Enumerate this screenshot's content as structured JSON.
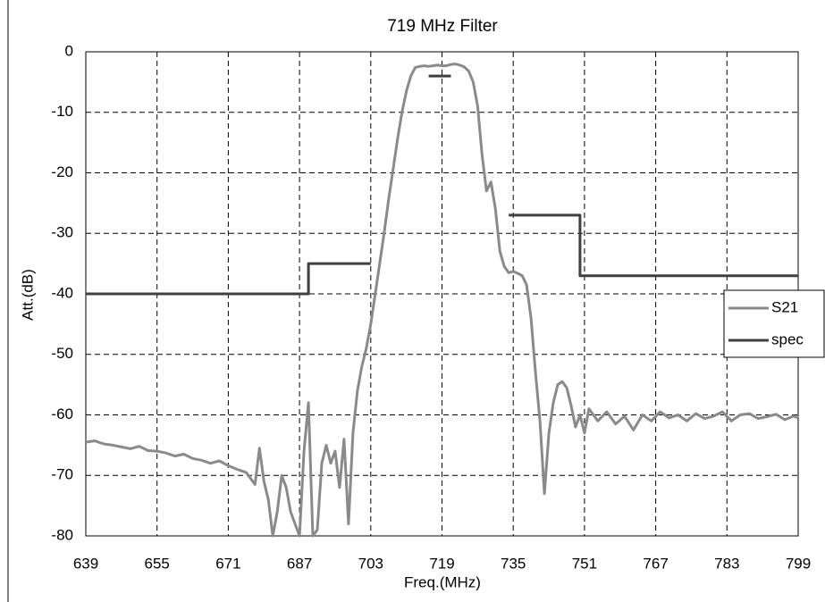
{
  "chart_data": {
    "type": "line",
    "title": "719 MHz Filter",
    "x_label": "Freq.(MHz)",
    "y_label": "Att.(dB)",
    "xlim": [
      639,
      799
    ],
    "xticks": [
      639,
      655,
      671,
      687,
      703,
      719,
      735,
      751,
      767,
      783,
      799
    ],
    "ylim": [
      -80,
      0
    ],
    "yticks": [
      0,
      -10,
      -20,
      -30,
      -40,
      -50,
      -60,
      -70,
      -80
    ],
    "grid": true,
    "legend": "right",
    "series": [
      {
        "name": "S21",
        "color": "#8a8a8a",
        "x": [
          639,
          641,
          643,
          645,
          647,
          649,
          651,
          653,
          655,
          657,
          659,
          661,
          663,
          665,
          667,
          669,
          671,
          673,
          675,
          676,
          677,
          678,
          679,
          680,
          681,
          682,
          683,
          684,
          685,
          686,
          687,
          688,
          689,
          690,
          691,
          692,
          693,
          694,
          695,
          696,
          697,
          698,
          699,
          700,
          701,
          702,
          703,
          704,
          705,
          706,
          707,
          708,
          709,
          710,
          711,
          712,
          713,
          714,
          715,
          716,
          717,
          718,
          719,
          720,
          721,
          722,
          723,
          724,
          725,
          726,
          727,
          728,
          729,
          730,
          731,
          732,
          733,
          734,
          735,
          736,
          737,
          738,
          739,
          740,
          741,
          742,
          743,
          744,
          745,
          746,
          747,
          748,
          749,
          750,
          751,
          752,
          754,
          756,
          758,
          760,
          762,
          764,
          766,
          768,
          770,
          772,
          774,
          776,
          778,
          780,
          782,
          784,
          786,
          788,
          790,
          792,
          794,
          796,
          798,
          799
        ],
        "values": [
          -64.5,
          -64.3,
          -64.8,
          -65.0,
          -65.3,
          -65.6,
          -65.2,
          -65.9,
          -66.0,
          -66.3,
          -66.8,
          -66.5,
          -67.2,
          -67.5,
          -68.0,
          -67.6,
          -68.4,
          -69.0,
          -69.5,
          -70.5,
          -71.5,
          -65.5,
          -71,
          -74,
          -80,
          -76,
          -70,
          -72,
          -76,
          -78,
          -80,
          -66,
          -58,
          -80,
          -79,
          -68,
          -65,
          -68,
          -66,
          -72,
          -64,
          -78,
          -63,
          -56,
          -52,
          -49,
          -45,
          -40,
          -35,
          -30,
          -24.5,
          -19.5,
          -14.5,
          -10,
          -6.5,
          -4,
          -2.6,
          -2.4,
          -2.3,
          -2.4,
          -2.3,
          -2.2,
          -2.3,
          -2.3,
          -2.1,
          -2.0,
          -2.2,
          -2.5,
          -3.2,
          -5,
          -9,
          -17,
          -23,
          -21.5,
          -26,
          -33,
          -35.5,
          -36.5,
          -36.3,
          -36.6,
          -37,
          -38.5,
          -44,
          -53,
          -61,
          -73,
          -63,
          -58,
          -55,
          -54.5,
          -55.5,
          -58.5,
          -62,
          -60,
          -63,
          -59,
          -61,
          -59.5,
          -61.5,
          -60.2,
          -62.5,
          -60,
          -61,
          -59.5,
          -60.5,
          -60,
          -61,
          -59.8,
          -60.6,
          -60.2,
          -59.5,
          -61,
          -60,
          -59.8,
          -60.6,
          -60.3,
          -59.9,
          -60.8,
          -60.2,
          -60.5
        ]
      },
      {
        "name": "spec",
        "color": "#404040",
        "x": [
          639,
          689,
          689,
          703,
          null,
          716,
          721,
          null,
          734,
          750,
          750,
          799
        ],
        "values": [
          -40,
          -40,
          -35,
          -35,
          null,
          -4,
          -4,
          null,
          -27,
          -27,
          -37,
          -37
        ]
      }
    ]
  }
}
